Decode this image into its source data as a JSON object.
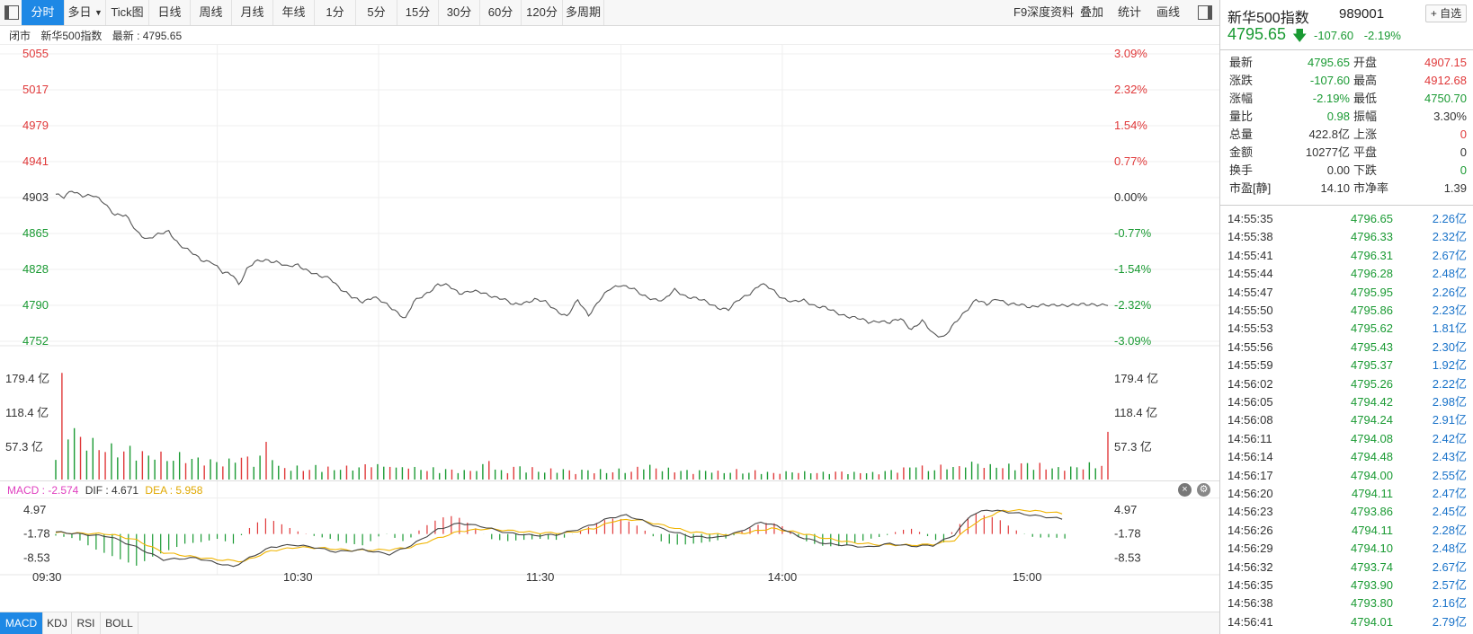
{
  "toolbar": {
    "tabs": [
      {
        "label": "分时",
        "active": true
      },
      {
        "label": "多日"
      },
      {
        "label": "Tick图"
      },
      {
        "label": "日线"
      },
      {
        "label": "周线"
      },
      {
        "label": "月线"
      },
      {
        "label": "年线"
      },
      {
        "label": "1分"
      },
      {
        "label": "5分"
      },
      {
        "label": "15分"
      },
      {
        "label": "30分"
      },
      {
        "label": "60分"
      },
      {
        "label": "120分"
      },
      {
        "label": "多周期"
      }
    ],
    "right": [
      "F9深度资料",
      "叠加",
      "统计",
      "画线"
    ]
  },
  "status": {
    "state": "闭市",
    "name": "新华500指数",
    "latest": "最新 : 4795.65"
  },
  "chart_data": {
    "type": "line",
    "price_axis_left": [
      "5055",
      "5017",
      "4979",
      "4941",
      "4903",
      "4865",
      "4828",
      "4790",
      "4752"
    ],
    "price_axis_right": [
      "3.09%",
      "2.32%",
      "1.54%",
      "0.77%",
      "0.00%",
      "-0.77%",
      "-1.54%",
      "-2.32%",
      "-3.09%"
    ],
    "price_ylim": [
      4752,
      5055
    ],
    "prev_close": 4903,
    "volume_axis": [
      "179.4 亿",
      "118.4 亿",
      "57.3 亿"
    ],
    "volume_ylim_yi": [
      0,
      240
    ],
    "macd_axis": [
      "4.97",
      "-1.78",
      "-8.53"
    ],
    "macd_ylim": [
      -12,
      8
    ],
    "time_labels": [
      "09:30",
      "10:30",
      "11:30",
      "14:00",
      "15:00"
    ],
    "price_keypoints": [
      [
        0,
        4907
      ],
      [
        3,
        4903
      ],
      [
        6,
        4911
      ],
      [
        10,
        4906
      ],
      [
        14,
        4905
      ],
      [
        18,
        4898
      ],
      [
        22,
        4886
      ],
      [
        26,
        4884
      ],
      [
        30,
        4868
      ],
      [
        34,
        4860
      ],
      [
        38,
        4864
      ],
      [
        42,
        4868
      ],
      [
        46,
        4854
      ],
      [
        50,
        4846
      ],
      [
        54,
        4838
      ],
      [
        58,
        4836
      ],
      [
        62,
        4824
      ],
      [
        66,
        4822
      ],
      [
        68,
        4812
      ],
      [
        71,
        4828
      ],
      [
        74,
        4835
      ],
      [
        78,
        4838
      ],
      [
        82,
        4836
      ],
      [
        86,
        4830
      ],
      [
        90,
        4833
      ],
      [
        94,
        4826
      ],
      [
        98,
        4820
      ],
      [
        102,
        4819
      ],
      [
        106,
        4807
      ],
      [
        110,
        4798
      ],
      [
        114,
        4794
      ],
      [
        118,
        4799
      ],
      [
        122,
        4792
      ],
      [
        126,
        4785
      ],
      [
        130,
        4776
      ],
      [
        133,
        4793
      ],
      [
        138,
        4803
      ],
      [
        142,
        4812
      ],
      [
        146,
        4810
      ],
      [
        150,
        4803
      ],
      [
        154,
        4805
      ],
      [
        158,
        4803
      ],
      [
        162,
        4800
      ],
      [
        166,
        4797
      ],
      [
        170,
        4790
      ],
      [
        174,
        4793
      ],
      [
        178,
        4796
      ],
      [
        182,
        4793
      ],
      [
        186,
        4785
      ],
      [
        190,
        4778
      ],
      [
        194,
        4795
      ],
      [
        198,
        4780
      ],
      [
        202,
        4795
      ],
      [
        206,
        4807
      ],
      [
        210,
        4812
      ],
      [
        214,
        4808
      ],
      [
        218,
        4800
      ],
      [
        222,
        4797
      ],
      [
        226,
        4795
      ],
      [
        230,
        4806
      ],
      [
        234,
        4800
      ],
      [
        238,
        4797
      ],
      [
        242,
        4793
      ],
      [
        246,
        4788
      ],
      [
        250,
        4785
      ],
      [
        254,
        4796
      ],
      [
        258,
        4803
      ],
      [
        262,
        4812
      ],
      [
        266,
        4807
      ],
      [
        270,
        4798
      ],
      [
        274,
        4793
      ],
      [
        278,
        4795
      ],
      [
        282,
        4790
      ],
      [
        286,
        4787
      ],
      [
        290,
        4782
      ],
      [
        294,
        4779
      ],
      [
        298,
        4776
      ],
      [
        302,
        4772
      ],
      [
        306,
        4774
      ],
      [
        310,
        4771
      ],
      [
        314,
        4776
      ],
      [
        318,
        4765
      ],
      [
        322,
        4773
      ],
      [
        326,
        4760
      ],
      [
        330,
        4757
      ],
      [
        334,
        4770
      ],
      [
        338,
        4783
      ],
      [
        342,
        4797
      ],
      [
        346,
        4790
      ],
      [
        350,
        4797
      ],
      [
        354,
        4792
      ],
      [
        358,
        4790
      ],
      [
        362,
        4788
      ],
      [
        366,
        4791
      ],
      [
        370,
        4789
      ],
      [
        374,
        4790
      ],
      [
        378,
        4791
      ],
      [
        383,
        4790
      ],
      [
        387,
        4791
      ],
      [
        391,
        4791
      ]
    ],
    "volume_pattern_yi": [
      35,
      190,
      95,
      80,
      72,
      66,
      60,
      58,
      55,
      52,
      50,
      48,
      52,
      45,
      43,
      42,
      44,
      40,
      38,
      36,
      40,
      38,
      34,
      35,
      33,
      30,
      32,
      28,
      30,
      36,
      40,
      34,
      30,
      38,
      62,
      45,
      20,
      22,
      18,
      20,
      19,
      17,
      22,
      18,
      20,
      16,
      22,
      20,
      18,
      24,
      22,
      28,
      26,
      20,
      30,
      18,
      22,
      24,
      18,
      20,
      16,
      18,
      15,
      17,
      16,
      15,
      14,
      16,
      18,
      22,
      40,
      18,
      14,
      15,
      20,
      22,
      16,
      18,
      15,
      14,
      16,
      15,
      18,
      14,
      13,
      15,
      16,
      14,
      15,
      13,
      14,
      16,
      15,
      13,
      20,
      24,
      22,
      20,
      18,
      17,
      15,
      16,
      14,
      13,
      15,
      14,
      16,
      13,
      12,
      14,
      15,
      13,
      12,
      14,
      13,
      12,
      11,
      13,
      12,
      14,
      13,
      12,
      14,
      11,
      12,
      13,
      12,
      14,
      12,
      11,
      13,
      12,
      11,
      12,
      14,
      15,
      16,
      18,
      22,
      26,
      20,
      18,
      17,
      22,
      24,
      20,
      22,
      28,
      26,
      30,
      24,
      22,
      26,
      20,
      24,
      22,
      25,
      28,
      22,
      24,
      20,
      22,
      18,
      20,
      22,
      19,
      24,
      26,
      20,
      30,
      85
    ],
    "macd_bars": [
      [
        0,
        -0.5
      ],
      [
        8,
        -1.5
      ],
      [
        14,
        -4.5
      ],
      [
        20,
        -6.5
      ],
      [
        26,
        -8.5
      ],
      [
        30,
        -9.8
      ],
      [
        36,
        -7
      ],
      [
        42,
        -5
      ],
      [
        48,
        -3
      ],
      [
        54,
        -2.5
      ],
      [
        60,
        -1.5
      ],
      [
        66,
        -3
      ],
      [
        70,
        0.5
      ],
      [
        74,
        3.2
      ],
      [
        78,
        4.8
      ],
      [
        82,
        3.8
      ],
      [
        86,
        2.2
      ],
      [
        90,
        0.8
      ],
      [
        96,
        -0.6
      ],
      [
        102,
        -1.5
      ],
      [
        108,
        -2.8
      ],
      [
        114,
        -3.5
      ],
      [
        118,
        -1.8
      ],
      [
        122,
        0.3
      ],
      [
        126,
        -1.2
      ],
      [
        130,
        -2.5
      ],
      [
        136,
        1.8
      ],
      [
        142,
        4.6
      ],
      [
        146,
        5.7
      ],
      [
        150,
        5.0
      ],
      [
        154,
        3.0
      ],
      [
        158,
        0.5
      ],
      [
        162,
        -1.6
      ],
      [
        168,
        -2.2
      ],
      [
        174,
        -1.8
      ],
      [
        180,
        -1.5
      ],
      [
        186,
        -1.8
      ],
      [
        190,
        -0.9
      ],
      [
        194,
        0.8
      ],
      [
        198,
        2.2
      ],
      [
        202,
        3.8
      ],
      [
        206,
        4.8
      ],
      [
        210,
        4.6
      ],
      [
        214,
        3.6
      ],
      [
        218,
        1.6
      ],
      [
        222,
        -0.7
      ],
      [
        226,
        -2.8
      ],
      [
        232,
        -3.4
      ],
      [
        238,
        -2.9
      ],
      [
        244,
        -2.3
      ],
      [
        250,
        -1.2
      ],
      [
        256,
        1.2
      ],
      [
        262,
        3.2
      ],
      [
        266,
        3.6
      ],
      [
        270,
        2.4
      ],
      [
        274,
        0.3
      ],
      [
        278,
        -2.0
      ],
      [
        284,
        -3.6
      ],
      [
        290,
        -3.9
      ],
      [
        296,
        -3.0
      ],
      [
        302,
        -1.6
      ],
      [
        308,
        -0.6
      ],
      [
        314,
        1.2
      ],
      [
        318,
        1.6
      ],
      [
        322,
        0.3
      ],
      [
        326,
        -1.6
      ],
      [
        330,
        -2.6
      ],
      [
        334,
        1.6
      ],
      [
        338,
        4.6
      ],
      [
        342,
        6.3
      ],
      [
        346,
        5.6
      ],
      [
        350,
        4.8
      ],
      [
        354,
        2.6
      ],
      [
        358,
        0.6
      ],
      [
        362,
        -0.8
      ],
      [
        366,
        -1.1
      ],
      [
        370,
        -1.0
      ],
      [
        375,
        -1.4
      ]
    ],
    "dif_keypoints": [
      [
        0,
        -1.2
      ],
      [
        20,
        -2.5
      ],
      [
        30,
        -5.5
      ],
      [
        40,
        -9.0
      ],
      [
        52,
        -8.5
      ],
      [
        60,
        -10.0
      ],
      [
        66,
        -11.0
      ],
      [
        72,
        -8.5
      ],
      [
        80,
        -5.5
      ],
      [
        88,
        -4.8
      ],
      [
        96,
        -5.5
      ],
      [
        104,
        -6.8
      ],
      [
        114,
        -6.2
      ],
      [
        124,
        -7.5
      ],
      [
        132,
        -5.0
      ],
      [
        142,
        -0.5
      ],
      [
        150,
        1.3
      ],
      [
        158,
        0.4
      ],
      [
        168,
        -1.5
      ],
      [
        178,
        -2.2
      ],
      [
        186,
        -2.0
      ],
      [
        194,
        -0.5
      ],
      [
        200,
        1.0
      ],
      [
        206,
        2.8
      ],
      [
        212,
        3.5
      ],
      [
        218,
        2.0
      ],
      [
        226,
        -0.5
      ],
      [
        236,
        -2.5
      ],
      [
        246,
        -2.8
      ],
      [
        254,
        -1.2
      ],
      [
        262,
        1.6
      ],
      [
        268,
        0.5
      ],
      [
        276,
        -2.5
      ],
      [
        286,
        -4.5
      ],
      [
        294,
        -5.0
      ],
      [
        302,
        -5.5
      ],
      [
        310,
        -4.5
      ],
      [
        318,
        -5.2
      ],
      [
        326,
        -5.0
      ],
      [
        334,
        -2.0
      ],
      [
        340,
        3.5
      ],
      [
        346,
        5.0
      ],
      [
        352,
        4.6
      ],
      [
        358,
        4.0
      ],
      [
        366,
        3.2
      ],
      [
        374,
        2.5
      ]
    ],
    "dea_keypoints": [
      [
        0,
        -1.4
      ],
      [
        20,
        -1.8
      ],
      [
        30,
        -3.5
      ],
      [
        40,
        -7.0
      ],
      [
        52,
        -8.3
      ],
      [
        60,
        -9.0
      ],
      [
        70,
        -9.5
      ],
      [
        80,
        -6.5
      ],
      [
        90,
        -5.5
      ],
      [
        100,
        -5.8
      ],
      [
        110,
        -6.4
      ],
      [
        124,
        -6.2
      ],
      [
        132,
        -5.5
      ],
      [
        142,
        -3.0
      ],
      [
        150,
        -1.0
      ],
      [
        160,
        -0.3
      ],
      [
        170,
        -0.9
      ],
      [
        180,
        -1.5
      ],
      [
        190,
        -1.5
      ],
      [
        200,
        -0.2
      ],
      [
        208,
        2.0
      ],
      [
        216,
        2.3
      ],
      [
        226,
        0.6
      ],
      [
        236,
        -1.2
      ],
      [
        248,
        -2.0
      ],
      [
        256,
        -1.5
      ],
      [
        266,
        -0.2
      ],
      [
        276,
        -1.4
      ],
      [
        286,
        -3.0
      ],
      [
        296,
        -4.2
      ],
      [
        306,
        -4.8
      ],
      [
        318,
        -4.9
      ],
      [
        326,
        -4.7
      ],
      [
        334,
        -3.5
      ],
      [
        340,
        0.5
      ],
      [
        346,
        3.0
      ],
      [
        352,
        4.8
      ],
      [
        360,
        4.9
      ],
      [
        368,
        4.5
      ],
      [
        374,
        4.0
      ]
    ]
  },
  "macd": {
    "label": "MACD : -2.574",
    "dif": "DIF : 4.671",
    "dea": "DEA : 5.958"
  },
  "indicator_tabs": [
    {
      "label": "MACD",
      "active": true
    },
    {
      "label": "KDJ"
    },
    {
      "label": "RSI"
    },
    {
      "label": "BOLL"
    }
  ],
  "quote": {
    "name": "新华500指数",
    "code": "989001",
    "fav": "+ 自选",
    "price": "4795.65",
    "change": "-107.60",
    "pct": "-2.19%",
    "rows": [
      {
        "l1": "最新",
        "v1": "4795.65",
        "c1": "green",
        "l2": "开盘",
        "v2": "4907.15",
        "c2": "red"
      },
      {
        "l1": "涨跌",
        "v1": "-107.60",
        "c1": "green",
        "l2": "最高",
        "v2": "4912.68",
        "c2": "red"
      },
      {
        "l1": "涨幅",
        "v1": "-2.19%",
        "c1": "green",
        "l2": "最低",
        "v2": "4750.70",
        "c2": "green"
      },
      {
        "l1": "量比",
        "v1": "0.98",
        "c1": "green",
        "l2": "振幅",
        "v2": "3.30%",
        "c2": "black"
      },
      {
        "l1": "总量",
        "v1": "422.8亿",
        "c1": "black",
        "l2": "上涨",
        "v2": "0",
        "c2": "red"
      },
      {
        "l1": "金额",
        "v1": "10277亿",
        "c1": "black",
        "l2": "平盘",
        "v2": "0",
        "c2": "black"
      },
      {
        "l1": "换手",
        "v1": "0.00",
        "c1": "black",
        "l2": "下跌",
        "v2": "0",
        "c2": "green"
      },
      {
        "l1": "市盈[静]",
        "v1": "14.10",
        "c1": "black",
        "l2": "市净率",
        "v2": "1.39",
        "c2": "black"
      }
    ]
  },
  "ticks": [
    {
      "time": "14:55:35",
      "price": "4796.65",
      "vol": "2.26亿"
    },
    {
      "time": "14:55:38",
      "price": "4796.33",
      "vol": "2.32亿"
    },
    {
      "time": "14:55:41",
      "price": "4796.31",
      "vol": "2.67亿"
    },
    {
      "time": "14:55:44",
      "price": "4796.28",
      "vol": "2.48亿"
    },
    {
      "time": "14:55:47",
      "price": "4795.95",
      "vol": "2.26亿"
    },
    {
      "time": "14:55:50",
      "price": "4795.86",
      "vol": "2.23亿"
    },
    {
      "time": "14:55:53",
      "price": "4795.62",
      "vol": "1.81亿"
    },
    {
      "time": "14:55:56",
      "price": "4795.43",
      "vol": "2.30亿"
    },
    {
      "time": "14:55:59",
      "price": "4795.37",
      "vol": "1.92亿"
    },
    {
      "time": "14:56:02",
      "price": "4795.26",
      "vol": "2.22亿"
    },
    {
      "time": "14:56:05",
      "price": "4794.42",
      "vol": "2.98亿"
    },
    {
      "time": "14:56:08",
      "price": "4794.24",
      "vol": "2.91亿"
    },
    {
      "time": "14:56:11",
      "price": "4794.08",
      "vol": "2.42亿"
    },
    {
      "time": "14:56:14",
      "price": "4794.48",
      "vol": "2.43亿"
    },
    {
      "time": "14:56:17",
      "price": "4794.00",
      "vol": "2.55亿"
    },
    {
      "time": "14:56:20",
      "price": "4794.11",
      "vol": "2.47亿"
    },
    {
      "time": "14:56:23",
      "price": "4793.86",
      "vol": "2.45亿"
    },
    {
      "time": "14:56:26",
      "price": "4794.11",
      "vol": "2.28亿"
    },
    {
      "time": "14:56:29",
      "price": "4794.10",
      "vol": "2.48亿"
    },
    {
      "time": "14:56:32",
      "price": "4793.74",
      "vol": "2.67亿"
    },
    {
      "time": "14:56:35",
      "price": "4793.90",
      "vol": "2.57亿"
    },
    {
      "time": "14:56:38",
      "price": "4793.80",
      "vol": "2.16亿"
    },
    {
      "time": "14:56:41",
      "price": "4794.01",
      "vol": "2.79亿"
    }
  ],
  "colors": {
    "up": "#e0393a",
    "down": "#1a9a33",
    "accent": "#1e88e5",
    "dea": "#f0b400",
    "dif": "#444444",
    "macd_label": "#e040c0"
  }
}
